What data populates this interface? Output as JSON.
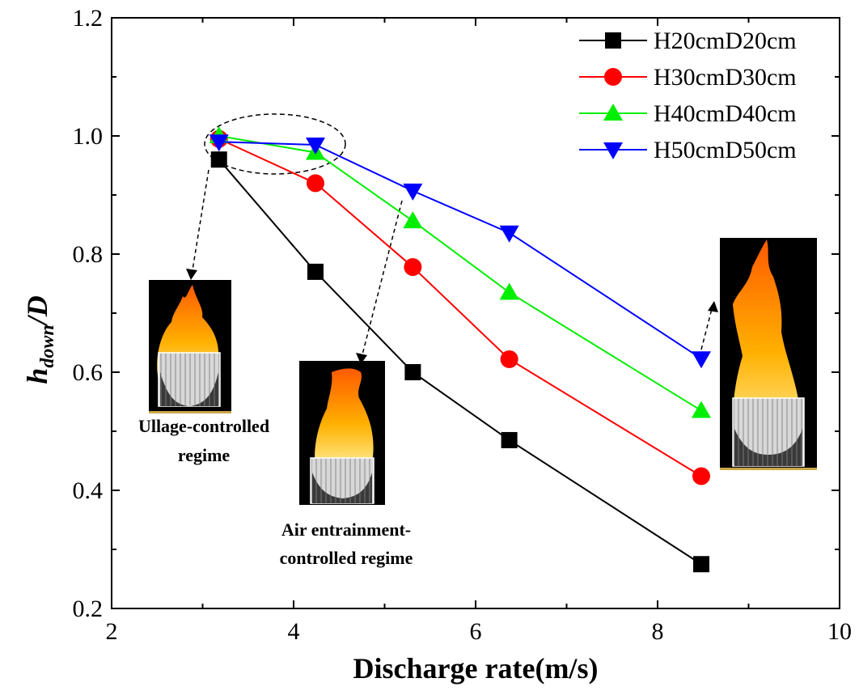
{
  "chart_data": {
    "type": "line",
    "xlabel": "Discharge rate(m/s)",
    "ylabel_main": "h",
    "ylabel_sub": "down",
    "ylabel_tail": "/D",
    "xlim": [
      2,
      10
    ],
    "ylim": [
      0.2,
      1.2
    ],
    "xticks": [
      "2",
      "4",
      "6",
      "8",
      "10"
    ],
    "yticks": [
      "0.2",
      "0.4",
      "0.6",
      "0.8",
      "1.0",
      "1.2"
    ],
    "grid": false,
    "legend_position": "top-right",
    "series": [
      {
        "name": "H20cmD20cm",
        "color": "#000000",
        "marker": "square",
        "x": [
          3.18,
          4.24,
          5.31,
          6.37,
          8.48
        ],
        "y": [
          0.96,
          0.77,
          0.6,
          0.485,
          0.275
        ]
      },
      {
        "name": "H30cmD30cm",
        "color": "#ff0000",
        "marker": "circle",
        "x": [
          3.18,
          4.24,
          5.31,
          6.37,
          8.48
        ],
        "y": [
          0.995,
          0.92,
          0.778,
          0.622,
          0.424
        ]
      },
      {
        "name": "H40cmD40cm",
        "color": "#00ee00",
        "marker": "triangle-up",
        "x": [
          3.18,
          4.24,
          5.31,
          6.37,
          8.48
        ],
        "y": [
          1.0,
          0.972,
          0.856,
          0.735,
          0.535
        ]
      },
      {
        "name": "H50cmD50cm",
        "color": "#0000ff",
        "marker": "triangle-down",
        "x": [
          3.18,
          4.24,
          5.31,
          6.37,
          8.48
        ],
        "y": [
          0.99,
          0.985,
          0.907,
          0.836,
          0.623
        ]
      }
    ],
    "annotations": {
      "ullage_line1": "Ullage-controlled",
      "ullage_line2": "regime",
      "air_line1": "Air entrainment-",
      "air_line2": "controlled regime"
    }
  }
}
